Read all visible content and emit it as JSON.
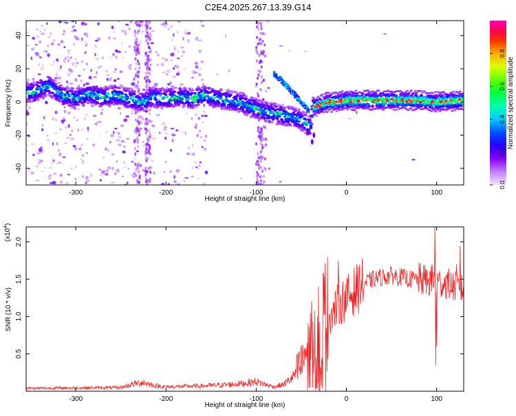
{
  "figure": {
    "title": "C2E4.2025.267.13.39.G14"
  },
  "chart_data": [
    {
      "type": "heatmap",
      "xlabel": "Height of straight line (km)",
      "ylabel": "Frequency (Hz)",
      "xlim": [
        -355,
        130
      ],
      "ylim": [
        -50,
        49
      ],
      "x_ticks": [
        -300,
        -200,
        -100,
        0,
        100
      ],
      "y_ticks": [
        -40,
        -20,
        0,
        20,
        40
      ],
      "grid": false,
      "colorbar": {
        "label": "Normalized spectral amplitude",
        "ticks": [
          0.0,
          0.2,
          0.4,
          0.6,
          0.8
        ],
        "range": [
          0,
          1
        ],
        "colors": [
          "#f2e6ff",
          "#8800ff",
          "#0000ff",
          "#00c8ff",
          "#00ff80",
          "#40ff00",
          "#ffff00",
          "#ff8800",
          "#ff0000",
          "#ff00aa"
        ]
      },
      "ridge": [
        [
          -345,
          6
        ],
        [
          -330,
          10
        ],
        [
          -315,
          4
        ],
        [
          -300,
          2
        ],
        [
          -285,
          5
        ],
        [
          -270,
          3
        ],
        [
          -255,
          4
        ],
        [
          -240,
          2
        ],
        [
          -225,
          0
        ],
        [
          -215,
          3
        ],
        [
          -200,
          2
        ],
        [
          -185,
          3
        ],
        [
          -170,
          2
        ],
        [
          -160,
          4
        ],
        [
          -150,
          3
        ],
        [
          -140,
          2
        ],
        [
          -130,
          1
        ],
        [
          -120,
          0
        ],
        [
          -110,
          -2
        ],
        [
          -100,
          -4
        ],
        [
          -90,
          -6
        ],
        [
          -80,
          -7
        ],
        [
          -70,
          -8
        ],
        [
          -60,
          -9
        ],
        [
          -50,
          -11
        ],
        [
          -40,
          -15
        ],
        [
          -37,
          -3
        ],
        [
          -30,
          -2
        ],
        [
          -20,
          0
        ],
        [
          -10,
          0
        ],
        [
          0,
          1
        ],
        [
          20,
          1
        ],
        [
          40,
          1
        ],
        [
          60,
          1
        ],
        [
          80,
          1
        ],
        [
          100,
          0
        ],
        [
          130,
          1
        ]
      ],
      "secondary_ridge": [
        [
          -80,
          17
        ],
        [
          -70,
          12
        ],
        [
          -60,
          6
        ],
        [
          -50,
          0
        ],
        [
          -42,
          -5
        ]
      ],
      "tail": [
        [
          -36,
          -20
        ],
        [
          -38,
          -24
        ]
      ]
    },
    {
      "type": "line",
      "xlabel": "Height of straight line (km)",
      "ylabel": "SNR (10 * v/v)",
      "y_multiplier": "(x10",
      "y_multiplier_exp": "4",
      "y_multiplier_close": ")",
      "xlim": [
        -355,
        130
      ],
      "ylim": [
        0,
        22000
      ],
      "x_ticks": [
        -300,
        -200,
        -100,
        0,
        100
      ],
      "y_ticks": [
        5000,
        10000,
        15000,
        20000
      ],
      "y_tick_labels": [
        "0.5",
        "1.0",
        "1.5",
        "2.0"
      ],
      "series": [
        {
          "color": "#ee2222",
          "envelope": [
            [
              -355,
              400
            ],
            [
              -300,
              450
            ],
            [
              -250,
              500
            ],
            [
              -235,
              1000
            ],
            [
              -225,
              1200
            ],
            [
              -215,
              800
            ],
            [
              -200,
              600
            ],
            [
              -160,
              700
            ],
            [
              -130,
              900
            ],
            [
              -110,
              1100
            ],
            [
              -100,
              1300
            ],
            [
              -90,
              900
            ],
            [
              -80,
              600
            ],
            [
              -70,
              900
            ],
            [
              -60,
              1800
            ],
            [
              -50,
              3500
            ],
            [
              -45,
              6000
            ],
            [
              -40,
              6500
            ],
            [
              -35,
              8000
            ],
            [
              -30,
              9000
            ],
            [
              -25,
              9500
            ],
            [
              -20,
              10000
            ],
            [
              -15,
              10500
            ],
            [
              -10,
              11500
            ],
            [
              0,
              12500
            ],
            [
              10,
              13500
            ],
            [
              20,
              14500
            ],
            [
              30,
              15000
            ],
            [
              40,
              15300
            ],
            [
              50,
              15500
            ],
            [
              60,
              15300
            ],
            [
              70,
              15000
            ],
            [
              80,
              15000
            ],
            [
              90,
              14800
            ],
            [
              100,
              14500
            ],
            [
              110,
              14500
            ],
            [
              120,
              14000
            ],
            [
              130,
              13500
            ]
          ],
          "spikes": [
            [
              -40,
              10500
            ],
            [
              -35,
              10800
            ],
            [
              -32,
              10000
            ],
            [
              -25,
              10200
            ],
            [
              -15,
              10800
            ],
            [
              -9,
              17500
            ],
            [
              0,
              11200
            ],
            [
              15,
              13000
            ],
            [
              95,
              17000
            ],
            [
              98,
              22000
            ],
            [
              100,
              6000
            ],
            [
              99,
              3500
            ],
            [
              118,
              15800
            ],
            [
              122,
              17000
            ],
            [
              126,
              19500
            ]
          ]
        }
      ]
    }
  ]
}
